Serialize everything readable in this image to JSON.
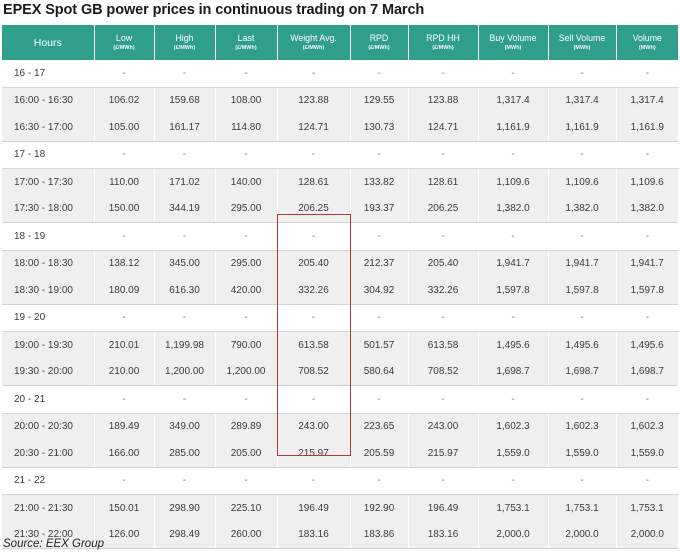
{
  "title": "EPEX Spot GB power prices in continuous trading on 7 March",
  "source": "Source: EEX Group",
  "colors": {
    "header_bg": "#2f9e8b",
    "highlight_border": "#b23a3a",
    "row_bg": "#efefef"
  },
  "columns": [
    {
      "label": "Hours",
      "unit": ""
    },
    {
      "label": "Low",
      "unit": "(£/MWh)"
    },
    {
      "label": "High",
      "unit": "(£/MWh)"
    },
    {
      "label": "Last",
      "unit": "(£/MWh)"
    },
    {
      "label": "Weight Avg.",
      "unit": "(£/MWh)"
    },
    {
      "label": "RPD",
      "unit": "(£/MWh)"
    },
    {
      "label": "RPD HH",
      "unit": "(£/MWh)"
    },
    {
      "label": "Buy Volume",
      "unit": "(MWh)"
    },
    {
      "label": "Sell Volume",
      "unit": "(MWh)"
    },
    {
      "label": "Volume",
      "unit": "(MWh)"
    }
  ],
  "groups": [
    {
      "label": "16 - 17",
      "rows": [
        [
          "16:00 - 16:30",
          "106.02",
          "159.68",
          "108.00",
          "123.88",
          "129.55",
          "123.88",
          "1,317.4",
          "1,317.4",
          "1,317.4"
        ],
        [
          "16:30 - 17:00",
          "105.00",
          "161.17",
          "114.80",
          "124.71",
          "130.73",
          "124.71",
          "1,161.9",
          "1,161.9",
          "1,161.9"
        ]
      ]
    },
    {
      "label": "17 - 18",
      "rows": [
        [
          "17:00 - 17:30",
          "110.00",
          "171.02",
          "140.00",
          "128.61",
          "133.82",
          "128.61",
          "1,109.6",
          "1,109.6",
          "1,109.6"
        ],
        [
          "17:30 - 18:00",
          "150.00",
          "344.19",
          "295.00",
          "206.25",
          "193.37",
          "206.25",
          "1,382.0",
          "1,382.0",
          "1,382.0"
        ]
      ]
    },
    {
      "label": "18 - 19",
      "rows": [
        [
          "18:00 - 18:30",
          "138.12",
          "345.00",
          "295.00",
          "205.40",
          "212.37",
          "205.40",
          "1,941.7",
          "1,941.7",
          "1,941.7"
        ],
        [
          "18:30 - 19:00",
          "180.09",
          "616.30",
          "420.00",
          "332.26",
          "304.92",
          "332.26",
          "1,597.8",
          "1,597.8",
          "1,597.8"
        ]
      ]
    },
    {
      "label": "19 - 20",
      "rows": [
        [
          "19:00 - 19:30",
          "210.01",
          "1,199.98",
          "790.00",
          "613.58",
          "501.57",
          "613.58",
          "1,495.6",
          "1,495.6",
          "1,495.6"
        ],
        [
          "19:30 - 20:00",
          "210.00",
          "1,200.00",
          "1,200.00",
          "708.52",
          "580.64",
          "708.52",
          "1,698.7",
          "1,698.7",
          "1,698.7"
        ]
      ]
    },
    {
      "label": "20 - 21",
      "rows": [
        [
          "20:00 - 20:30",
          "189.49",
          "349.00",
          "289.89",
          "243.00",
          "223.65",
          "243.00",
          "1,602.3",
          "1,602.3",
          "1,602.3"
        ],
        [
          "20:30 - 21:00",
          "166.00",
          "285.00",
          "205.00",
          "215.97",
          "205.59",
          "215.97",
          "1,559.0",
          "1,559.0",
          "1,559.0"
        ]
      ]
    },
    {
      "label": "21 - 22",
      "rows": [
        [
          "21:00 - 21:30",
          "150.01",
          "298.90",
          "225.10",
          "196.49",
          "192.90",
          "196.49",
          "1,753.1",
          "1,753.1",
          "1,753.1"
        ],
        [
          "21:30 - 22:00",
          "126.00",
          "298.49",
          "260.00",
          "183.16",
          "183.86",
          "183.16",
          "2,000.0",
          "2,000.0",
          "2,000.0"
        ]
      ]
    }
  ],
  "placeholder": "-"
}
